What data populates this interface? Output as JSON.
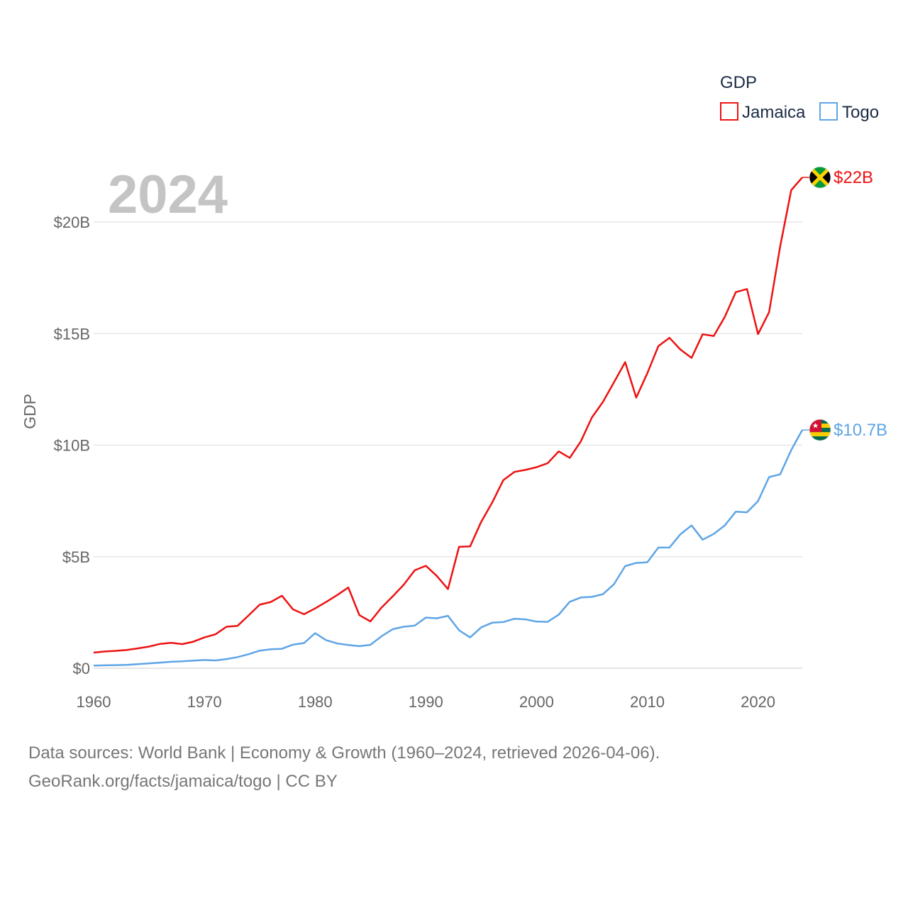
{
  "chart_data": {
    "type": "line",
    "title": "2024",
    "ylabel": "GDP",
    "xlabel": "",
    "xlim": [
      1960,
      2024
    ],
    "ylim": [
      0,
      22500000000
    ],
    "x_ticks": [
      1960,
      1970,
      1980,
      1990,
      2000,
      2010,
      2020
    ],
    "x_tick_labels": [
      "1960",
      "1970",
      "1980",
      "1990",
      "2000",
      "2010",
      "2020"
    ],
    "y_ticks": [
      0,
      5000000000,
      10000000000,
      15000000000,
      20000000000
    ],
    "y_tick_labels": [
      "$0",
      "$5B",
      "$10B",
      "$15B",
      "$20B"
    ],
    "legend": {
      "title": "GDP",
      "position": "top-right"
    },
    "x": [
      1960,
      1961,
      1962,
      1963,
      1964,
      1965,
      1966,
      1967,
      1968,
      1969,
      1970,
      1971,
      1972,
      1973,
      1974,
      1975,
      1976,
      1977,
      1978,
      1979,
      1980,
      1981,
      1982,
      1983,
      1984,
      1985,
      1986,
      1987,
      1988,
      1989,
      1990,
      1991,
      1992,
      1993,
      1994,
      1995,
      1996,
      1997,
      1998,
      1999,
      2000,
      2001,
      2002,
      2003,
      2004,
      2005,
      2006,
      2007,
      2008,
      2009,
      2010,
      2011,
      2012,
      2013,
      2014,
      2015,
      2016,
      2017,
      2018,
      2019,
      2020,
      2021,
      2022,
      2023,
      2024
    ],
    "series": [
      {
        "name": "Jamaica",
        "color": "#ee1111",
        "end_label": "$22B",
        "flag": "jamaica-flag-icon",
        "values": [
          0.7,
          0.75,
          0.78,
          0.82,
          0.89,
          0.97,
          1.09,
          1.14,
          1.08,
          1.19,
          1.38,
          1.52,
          1.86,
          1.9,
          2.37,
          2.85,
          2.97,
          3.25,
          2.64,
          2.42,
          2.68,
          2.97,
          3.28,
          3.62,
          2.38,
          2.1,
          2.72,
          3.22,
          3.74,
          4.39,
          4.59,
          4.13,
          3.55,
          5.44,
          5.46,
          6.56,
          7.43,
          8.43,
          8.8,
          8.89,
          9.01,
          9.19,
          9.72,
          9.43,
          10.17,
          11.24,
          11.94,
          12.82,
          13.72,
          12.13,
          13.22,
          14.44,
          14.81,
          14.28,
          13.91,
          14.97,
          14.89,
          15.75,
          16.86,
          17.0,
          14.98,
          15.96,
          18.91,
          21.43,
          22.0
        ]
      },
      {
        "name": "Togo",
        "color": "#5ea5e6",
        "end_label": "$10.7B",
        "flag": "togo-flag-icon",
        "values": [
          0.12,
          0.13,
          0.14,
          0.15,
          0.18,
          0.22,
          0.25,
          0.29,
          0.31,
          0.34,
          0.37,
          0.35,
          0.41,
          0.5,
          0.63,
          0.79,
          0.85,
          0.87,
          1.06,
          1.13,
          1.57,
          1.26,
          1.11,
          1.04,
          0.99,
          1.05,
          1.43,
          1.75,
          1.86,
          1.91,
          2.27,
          2.24,
          2.35,
          1.7,
          1.38,
          1.83,
          2.04,
          2.07,
          2.22,
          2.19,
          2.09,
          2.08,
          2.4,
          2.98,
          3.17,
          3.2,
          3.32,
          3.77,
          4.58,
          4.72,
          4.75,
          5.41,
          5.41,
          6.01,
          6.4,
          5.76,
          6.02,
          6.4,
          7.02,
          6.99,
          7.49,
          8.57,
          8.69,
          9.78,
          10.68
        ]
      }
    ]
  },
  "footer": {
    "line1": "Data sources: World Bank | Economy & Growth (1960–2024, retrieved 2026-04-06).",
    "line2": "GeoRank.org/facts/jamaica/togo | CC BY"
  }
}
